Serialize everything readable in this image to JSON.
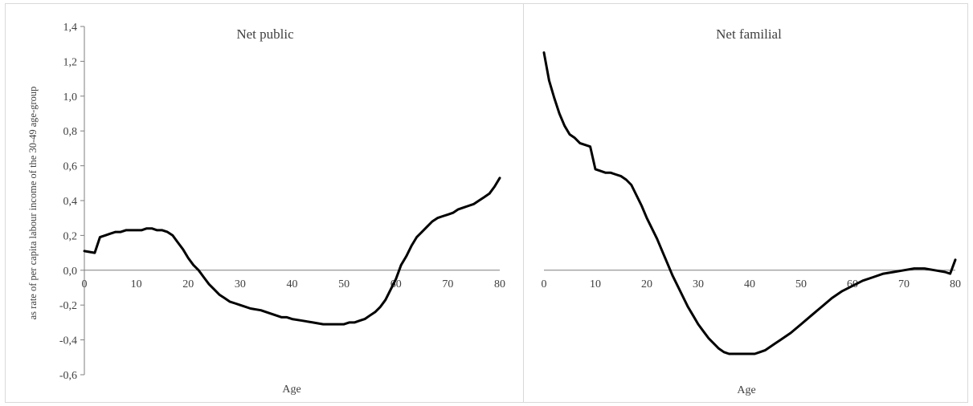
{
  "chart_data": [
    {
      "type": "line",
      "title": "Net public",
      "xlabel": "Age",
      "ylabel": "as rate of per capita labour income of the 30-49 age-group",
      "xlim": [
        0,
        80
      ],
      "ylim": [
        -0.6,
        1.4
      ],
      "x_ticks": [
        "0",
        "10",
        "20",
        "30",
        "40",
        "50",
        "60",
        "70",
        "80"
      ],
      "y_ticks": [
        "1,4",
        "1,2",
        "1,0",
        "0,8",
        "0,6",
        "0,4",
        "0,2",
        "0,0",
        "-0,2",
        "-0,4",
        "-0,6"
      ],
      "grid": false,
      "series": [
        {
          "color": "#000000",
          "x": [
            0,
            2,
            3,
            4,
            5,
            6,
            7,
            8,
            10,
            11,
            12,
            13,
            14,
            15,
            16,
            17,
            18,
            19,
            20,
            21,
            22,
            23,
            24,
            25,
            26,
            27,
            28,
            29,
            30,
            32,
            34,
            36,
            38,
            39,
            40,
            42,
            44,
            46,
            47,
            48,
            49,
            50,
            51,
            52,
            53,
            54,
            55,
            56,
            57,
            58,
            59,
            60,
            61,
            62,
            63,
            64,
            65,
            66,
            67,
            68,
            69,
            70,
            71,
            72,
            73,
            74,
            75,
            76,
            77,
            78,
            79,
            80
          ],
          "y": [
            0.11,
            0.1,
            0.19,
            0.2,
            0.21,
            0.22,
            0.22,
            0.23,
            0.23,
            0.23,
            0.24,
            0.24,
            0.23,
            0.23,
            0.22,
            0.2,
            0.16,
            0.12,
            0.07,
            0.03,
            0.0,
            -0.04,
            -0.08,
            -0.11,
            -0.14,
            -0.16,
            -0.18,
            -0.19,
            -0.2,
            -0.22,
            -0.23,
            -0.25,
            -0.27,
            -0.27,
            -0.28,
            -0.29,
            -0.3,
            -0.31,
            -0.31,
            -0.31,
            -0.31,
            -0.31,
            -0.3,
            -0.3,
            -0.29,
            -0.28,
            -0.26,
            -0.24,
            -0.21,
            -0.17,
            -0.11,
            -0.05,
            0.03,
            0.08,
            0.14,
            0.19,
            0.22,
            0.25,
            0.28,
            0.3,
            0.31,
            0.32,
            0.33,
            0.35,
            0.36,
            0.37,
            0.38,
            0.4,
            0.42,
            0.44,
            0.48,
            0.53
          ]
        }
      ]
    },
    {
      "type": "line",
      "title": "Net familial",
      "xlabel": "Age",
      "ylabel": "",
      "xlim": [
        0,
        80
      ],
      "ylim": [
        -0.6,
        1.4
      ],
      "x_ticks": [
        "0",
        "10",
        "20",
        "30",
        "40",
        "50",
        "60",
        "70",
        "80"
      ],
      "y_ticks": [],
      "grid": false,
      "series": [
        {
          "color": "#000000",
          "x": [
            0,
            1,
            2,
            3,
            4,
            5,
            6,
            7,
            8,
            9,
            10,
            11,
            12,
            13,
            14,
            15,
            16,
            17,
            18,
            19,
            20,
            21,
            22,
            23,
            24,
            25,
            26,
            27,
            28,
            29,
            30,
            31,
            32,
            33,
            34,
            35,
            36,
            37,
            38,
            39,
            40,
            41,
            42,
            43,
            44,
            45,
            46,
            48,
            50,
            52,
            54,
            56,
            58,
            60,
            62,
            64,
            66,
            68,
            70,
            72,
            74,
            76,
            78,
            79,
            80
          ],
          "y": [
            1.25,
            1.09,
            0.99,
            0.9,
            0.83,
            0.78,
            0.76,
            0.73,
            0.72,
            0.71,
            0.58,
            0.57,
            0.56,
            0.56,
            0.55,
            0.54,
            0.52,
            0.49,
            0.43,
            0.37,
            0.3,
            0.24,
            0.18,
            0.11,
            0.04,
            -0.03,
            -0.09,
            -0.15,
            -0.21,
            -0.26,
            -0.31,
            -0.35,
            -0.39,
            -0.42,
            -0.45,
            -0.47,
            -0.48,
            -0.48,
            -0.48,
            -0.48,
            -0.48,
            -0.48,
            -0.47,
            -0.46,
            -0.44,
            -0.42,
            -0.4,
            -0.36,
            -0.31,
            -0.26,
            -0.21,
            -0.16,
            -0.12,
            -0.09,
            -0.06,
            -0.04,
            -0.02,
            -0.01,
            0.0,
            0.01,
            0.01,
            0.0,
            -0.01,
            -0.02,
            0.06
          ]
        }
      ]
    }
  ]
}
